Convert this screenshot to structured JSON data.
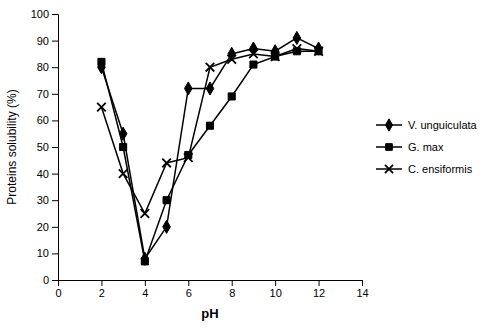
{
  "chart_data": {
    "type": "line",
    "x_label": "pH",
    "y_label": "Proteins solubility (%)",
    "x": [
      2,
      3,
      4,
      5,
      6,
      7,
      8,
      9,
      10,
      11,
      12
    ],
    "series": [
      {
        "name": "V. unguiculata",
        "color": "black",
        "marker": "diamond",
        "values": [
          80,
          55,
          8,
          20,
          72,
          72,
          85,
          87,
          86,
          91,
          87
        ]
      },
      {
        "name": "G. max",
        "color": "black",
        "marker": "square",
        "values": [
          82,
          50,
          7,
          30,
          47,
          58,
          69,
          81,
          84,
          86,
          86
        ]
      },
      {
        "name": "C. ensiformis",
        "color": "black",
        "marker": "x",
        "values": [
          65,
          40,
          25,
          44,
          46,
          80,
          83,
          85,
          84,
          87,
          86
        ]
      }
    ],
    "xlim": [
      0,
      14
    ],
    "ylim": [
      0,
      100
    ],
    "xticks": [
      0,
      2,
      4,
      6,
      8,
      10,
      12,
      14
    ],
    "yticks": [
      0,
      10,
      20,
      30,
      40,
      50,
      60,
      70,
      80,
      90,
      100
    ],
    "grid": false,
    "legend": "right"
  }
}
